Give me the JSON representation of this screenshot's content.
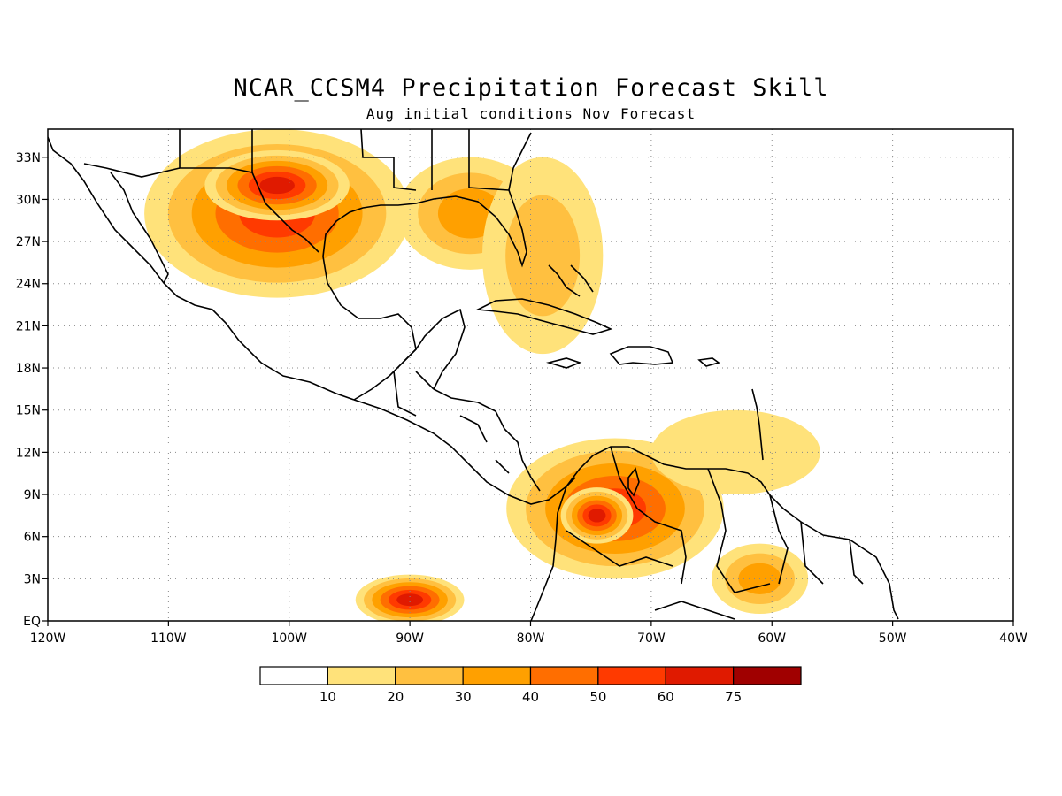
{
  "title": "NCAR_CCSM4 Precipitation Forecast Skill",
  "subtitle": "Aug initial conditions  Nov Forecast",
  "map": {
    "lon_range": [
      -120,
      -40
    ],
    "lat_range": [
      0,
      35
    ],
    "lon_ticks": [
      {
        "value": -120,
        "label": "120W"
      },
      {
        "value": -110,
        "label": "110W"
      },
      {
        "value": -100,
        "label": "100W"
      },
      {
        "value": -90,
        "label": "90W"
      },
      {
        "value": -80,
        "label": "80W"
      },
      {
        "value": -70,
        "label": "70W"
      },
      {
        "value": -60,
        "label": "60W"
      },
      {
        "value": -50,
        "label": "50W"
      },
      {
        "value": -40,
        "label": "40W"
      }
    ],
    "lat_ticks": [
      {
        "value": 0,
        "label": "EQ"
      },
      {
        "value": 3,
        "label": "3N"
      },
      {
        "value": 6,
        "label": "6N"
      },
      {
        "value": 9,
        "label": "9N"
      },
      {
        "value": 12,
        "label": "12N"
      },
      {
        "value": 15,
        "label": "15N"
      },
      {
        "value": 18,
        "label": "18N"
      },
      {
        "value": 21,
        "label": "21N"
      },
      {
        "value": 24,
        "label": "24N"
      },
      {
        "value": 27,
        "label": "27N"
      },
      {
        "value": 30,
        "label": "30N"
      },
      {
        "value": 33,
        "label": "33N"
      }
    ],
    "grid": "dotted",
    "skill_regions": [
      {
        "name": "mexico-texas",
        "lon": -101,
        "lat": 29,
        "rx": 11,
        "ry": 6,
        "level": 5
      },
      {
        "name": "texas-core",
        "lon": -101,
        "lat": 31,
        "rx": 6,
        "ry": 2.5,
        "level": 6
      },
      {
        "name": "gulf-east",
        "lon": -85,
        "lat": 29,
        "rx": 6,
        "ry": 4,
        "level": 3
      },
      {
        "name": "florida-bahamas",
        "lon": -79,
        "lat": 26,
        "rx": 5,
        "ry": 7,
        "level": 2
      },
      {
        "name": "colombia-venezuela",
        "lon": -73,
        "lat": 8,
        "rx": 9,
        "ry": 5,
        "level": 5
      },
      {
        "name": "colombia-core",
        "lon": -74.5,
        "lat": 7.5,
        "rx": 3,
        "ry": 2,
        "level": 6
      },
      {
        "name": "caribbean-east",
        "lon": -63,
        "lat": 12,
        "rx": 7,
        "ry": 3,
        "level": 1
      },
      {
        "name": "guyana",
        "lon": -61,
        "lat": 3,
        "rx": 4,
        "ry": 2.5,
        "level": 3
      },
      {
        "name": "pacific-south",
        "lon": -90,
        "lat": 1.5,
        "rx": 4.5,
        "ry": 1.8,
        "level": 6
      }
    ]
  },
  "colorbar": {
    "colors": [
      "#ffffff",
      "#ffe27a",
      "#ffc040",
      "#ffa000",
      "#ff6e00",
      "#ff3a00",
      "#e01a00",
      "#a00000"
    ],
    "labels": [
      "10",
      "20",
      "30",
      "40",
      "50",
      "60",
      "75"
    ]
  }
}
